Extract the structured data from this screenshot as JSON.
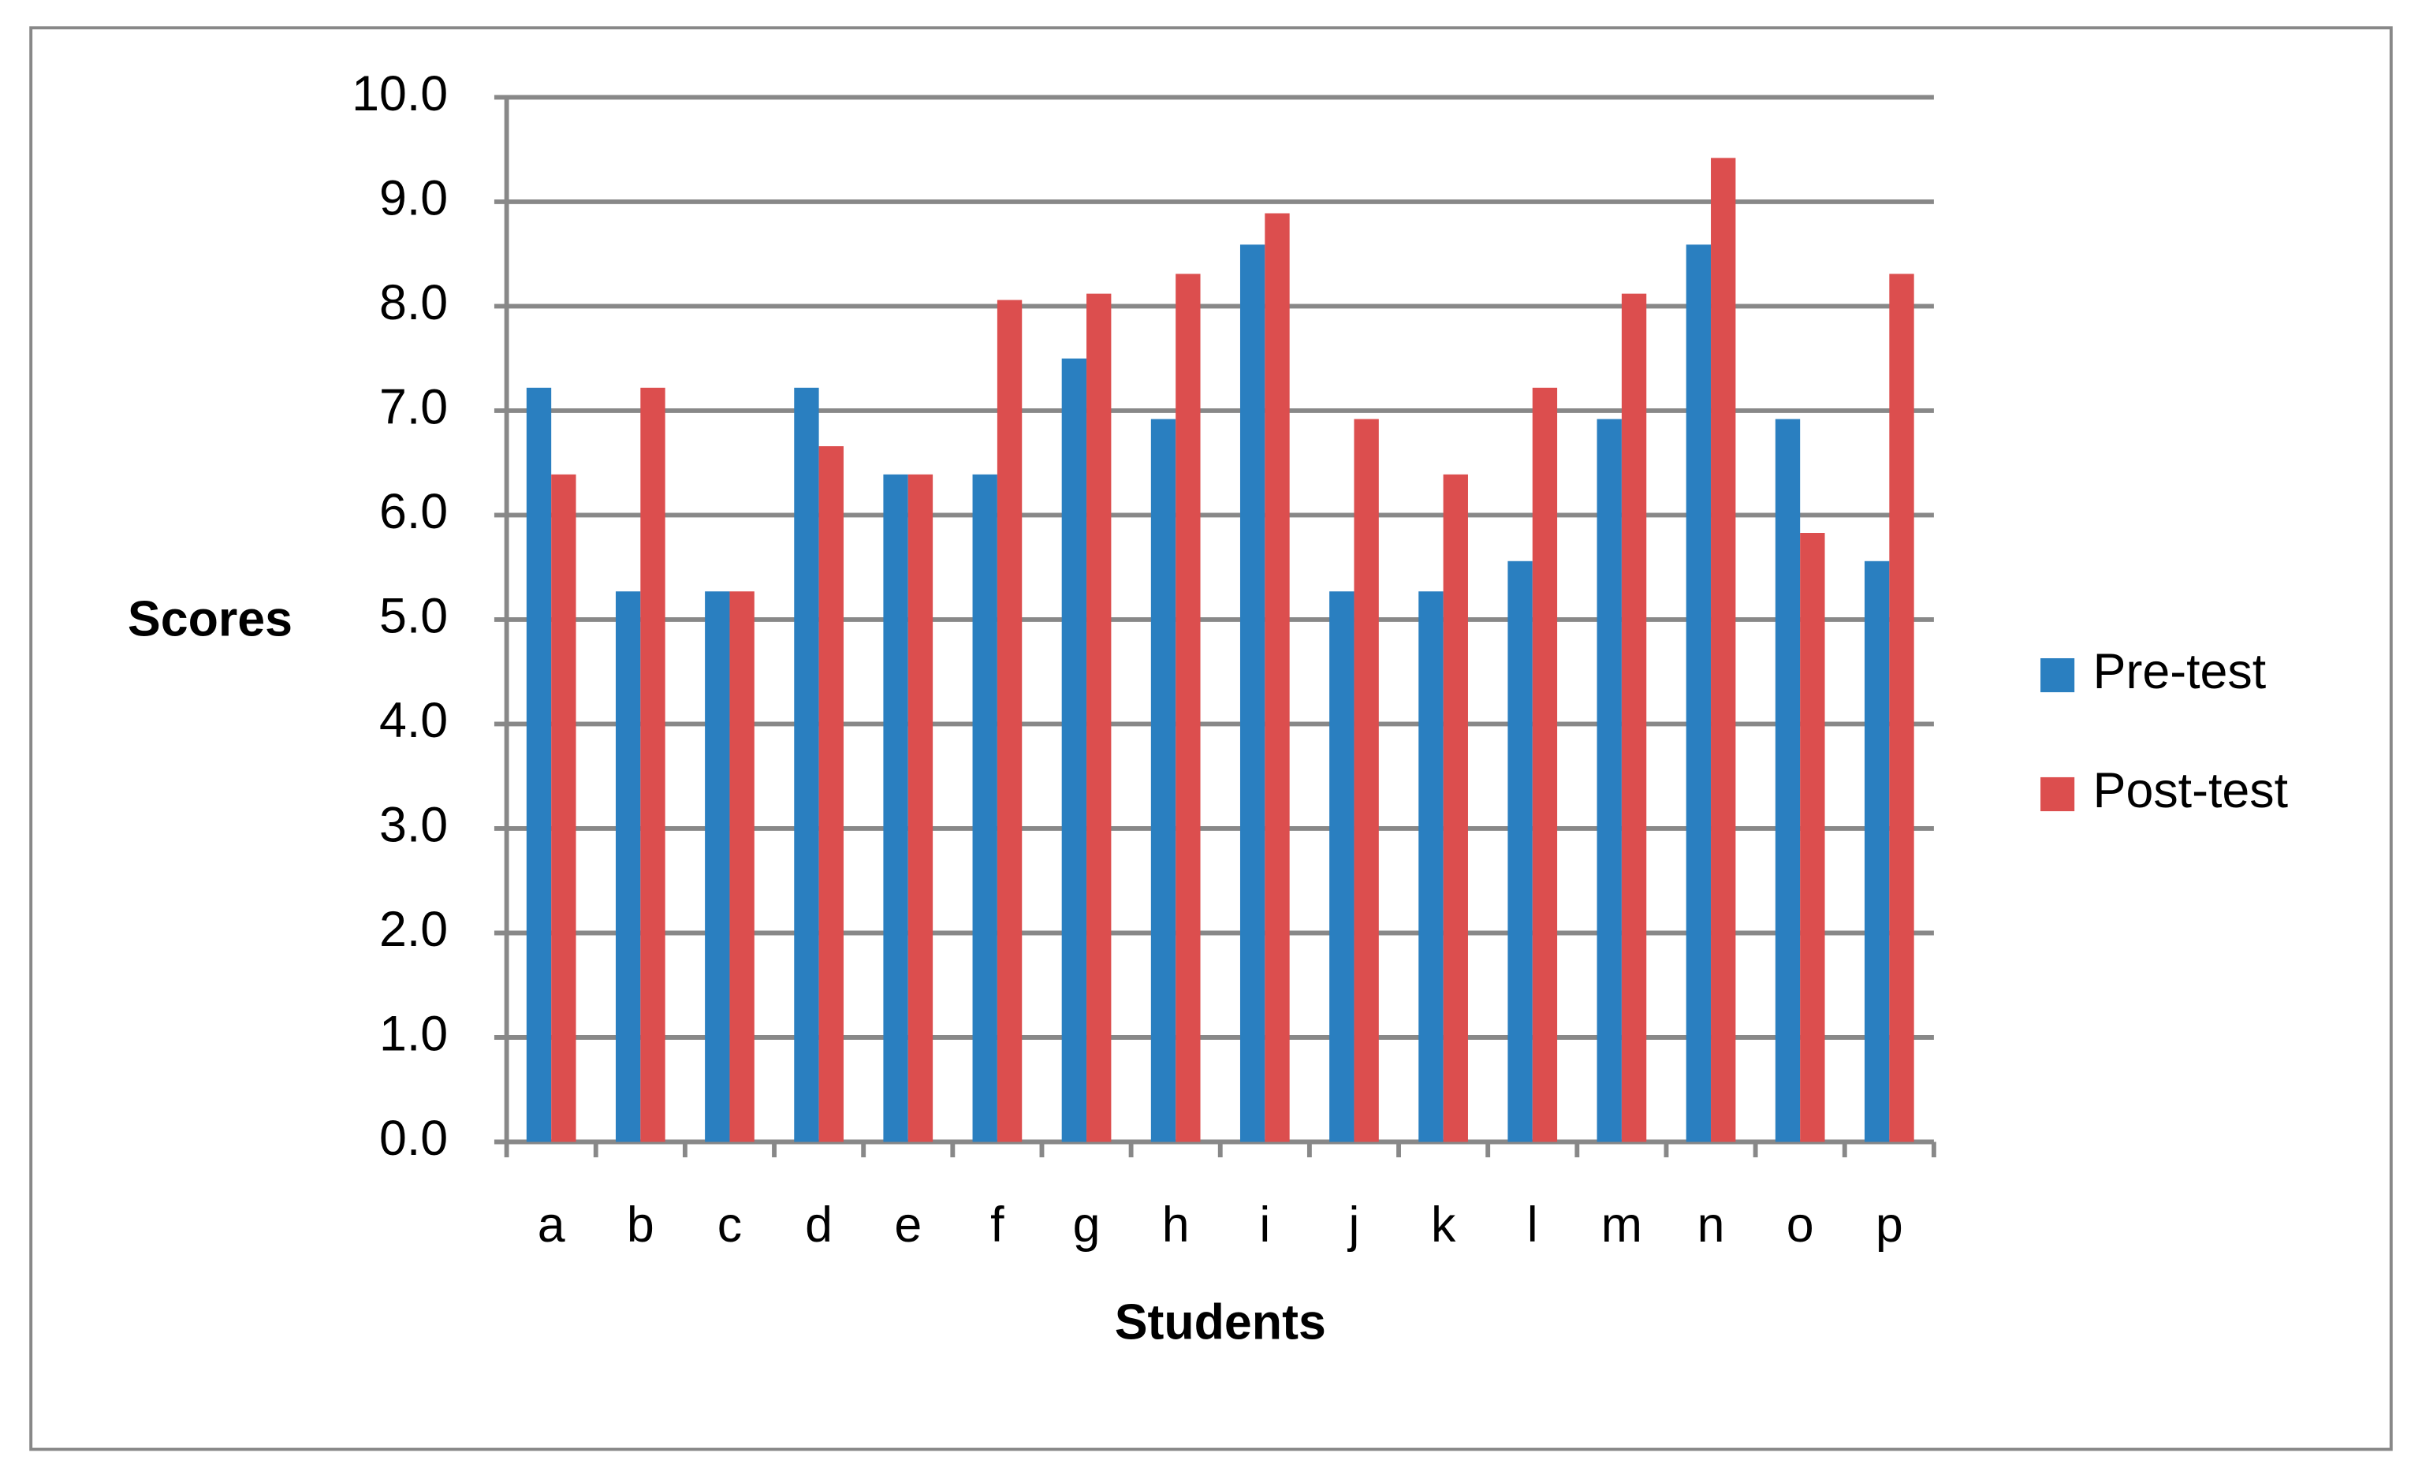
{
  "chart_data": {
    "type": "bar",
    "x_label": "Students",
    "y_label": "Scores",
    "categories": [
      "a",
      "b",
      "c",
      "d",
      "e",
      "f",
      "g",
      "h",
      "i",
      "j",
      "k",
      "l",
      "m",
      "n",
      "o",
      "p"
    ],
    "series": [
      {
        "name": "Pre-test",
        "color": "#2a7fc0",
        "values": [
          7.22,
          5.27,
          5.27,
          7.22,
          6.39,
          6.39,
          7.5,
          6.92,
          8.59,
          5.27,
          5.27,
          5.56,
          6.92,
          8.59,
          6.92,
          5.56
        ]
      },
      {
        "name": "Post-test",
        "color": "#dc4e4e",
        "values": [
          6.39,
          7.22,
          5.27,
          6.66,
          6.39,
          8.06,
          8.12,
          8.31,
          8.89,
          6.92,
          6.39,
          7.22,
          8.12,
          9.42,
          5.83,
          8.31
        ]
      }
    ],
    "ylim": [
      0,
      10
    ],
    "yticks": [
      {
        "value": 0,
        "label": "0.0"
      },
      {
        "value": 1,
        "label": "1.0"
      },
      {
        "value": 2,
        "label": "2.0"
      },
      {
        "value": 3,
        "label": "3.0"
      },
      {
        "value": 4,
        "label": "4.0"
      },
      {
        "value": 5,
        "label": "5.0"
      },
      {
        "value": 6,
        "label": "6.0"
      },
      {
        "value": 7,
        "label": "7.0"
      },
      {
        "value": 8,
        "label": "8.0"
      },
      {
        "value": 9,
        "label": "9.0"
      },
      {
        "value": 10,
        "label": "10.0"
      }
    ],
    "grid": true,
    "legend": "right"
  }
}
